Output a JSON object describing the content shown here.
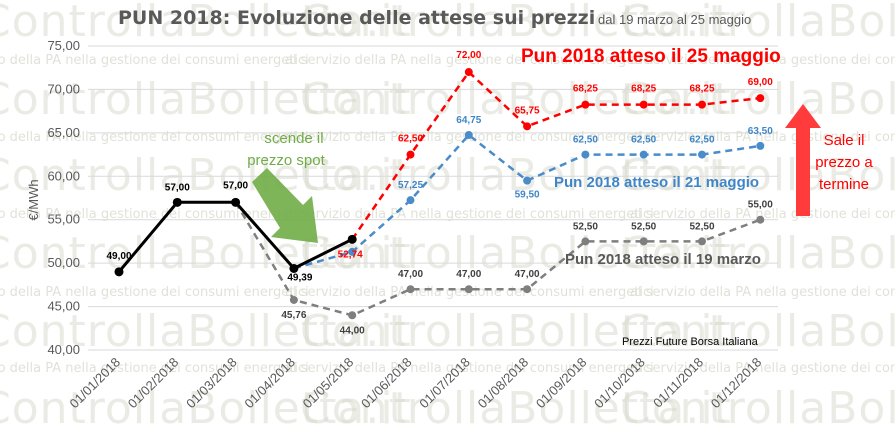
{
  "watermark": {
    "brand": "ControllaBolletta.it",
    "tagline": "al servizio della PA nella gestione dei consumi energetici"
  },
  "chart_data": {
    "type": "line",
    "title": "PUN 2018: Evoluzione delle attese sui prezzi",
    "subtitle": "dal 19 marzo al 25 maggio",
    "ylabel": "€/MWh",
    "xlabel": "",
    "ylim": [
      40,
      75
    ],
    "yticks": [
      "40,00",
      "45,00",
      "50,00",
      "55,00",
      "60,00",
      "65,00",
      "70,00",
      "75,00"
    ],
    "grid": true,
    "categories": [
      "01/01/2018",
      "01/02/2018",
      "01/03/2018",
      "01/04/2018",
      "01/05/2018",
      "01/06/2018",
      "01/07/2018",
      "01/08/2018",
      "01/09/2018",
      "01/10/2018",
      "01/11/2018",
      "01/12/2018"
    ],
    "series": [
      {
        "name": "spot",
        "color": "#000000",
        "dash": "solid",
        "values": [
          49.0,
          57.0,
          57.0,
          49.39,
          52.74,
          null,
          null,
          null,
          null,
          null,
          null,
          null
        ],
        "labels": [
          "49,00",
          "57,00",
          "57,00",
          "49,39",
          null,
          null,
          null,
          null,
          null,
          null,
          null,
          null
        ]
      },
      {
        "name": "Pun 2018 atteso il 19 marzo",
        "color": "#7f7f7f",
        "dash": "dashed",
        "values": [
          null,
          null,
          57.0,
          45.76,
          44.0,
          47.0,
          47.0,
          47.0,
          52.5,
          52.5,
          52.5,
          55.0
        ],
        "labels": [
          null,
          null,
          null,
          "45,76",
          "44,00",
          "47,00",
          "47,00",
          "47,00",
          "52,50",
          "52,50",
          "52,50",
          "55,00"
        ]
      },
      {
        "name": "Pun 2018 atteso il 21 maggio",
        "color": "#4a8cc9",
        "dash": "dashed",
        "values": [
          null,
          null,
          null,
          49.39,
          51.3,
          57.25,
          64.75,
          59.5,
          62.5,
          62.5,
          62.5,
          63.5
        ],
        "labels": [
          null,
          null,
          null,
          null,
          null,
          "57,25",
          "64,75",
          "59,50",
          "62,50",
          "62,50",
          "62,50",
          "63,50"
        ]
      },
      {
        "name": "Pun 2018 atteso il 25 maggio",
        "color": "#ff0000",
        "dash": "dashed",
        "values": [
          null,
          null,
          null,
          null,
          52.74,
          62.5,
          72.0,
          65.75,
          68.25,
          68.25,
          68.25,
          69.0
        ],
        "labels": [
          null,
          null,
          null,
          null,
          "52,74",
          "62,50",
          "72,00",
          "65,75",
          "68,25",
          "68,25",
          "68,25",
          "69,00"
        ]
      }
    ],
    "annotations": {
      "spot_drop": "scende il prezzo spot",
      "forward_rise": "Sale il prezzo a termine",
      "source": "Prezzi Future Borsa Italiana"
    }
  }
}
